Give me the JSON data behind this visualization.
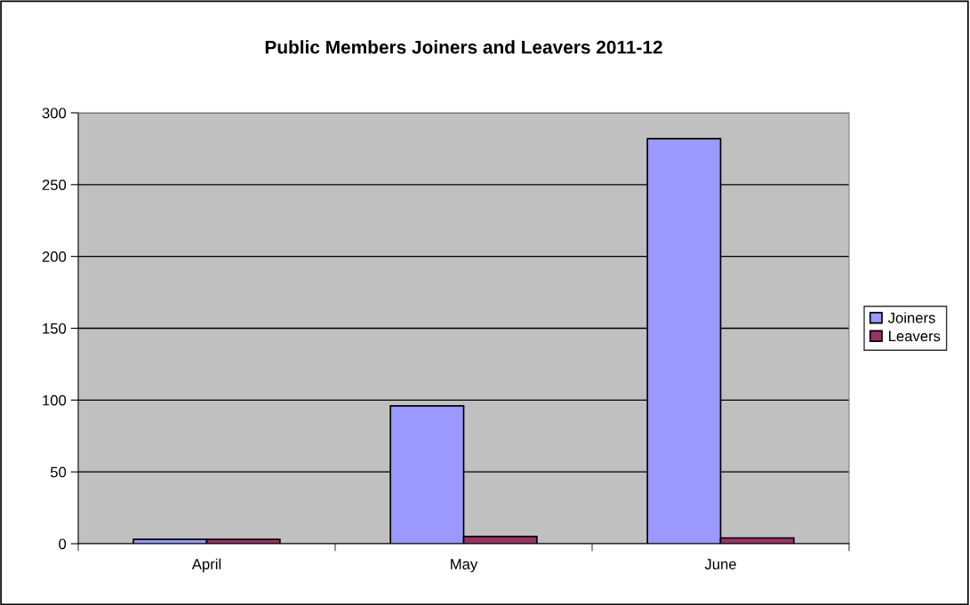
{
  "chart_data": {
    "type": "bar",
    "title": "Public Members Joiners and Leavers 2011-12",
    "categories": [
      "April",
      "May",
      "June"
    ],
    "series": [
      {
        "name": "Joiners",
        "color": "#9999ff",
        "values": [
          3,
          96,
          282
        ]
      },
      {
        "name": "Leavers",
        "color": "#993366",
        "values": [
          3,
          5,
          4
        ]
      }
    ],
    "ylim": [
      0,
      300
    ],
    "yticks": [
      0,
      50,
      100,
      150,
      200,
      250,
      300
    ],
    "grid": "y",
    "legend": "right"
  }
}
